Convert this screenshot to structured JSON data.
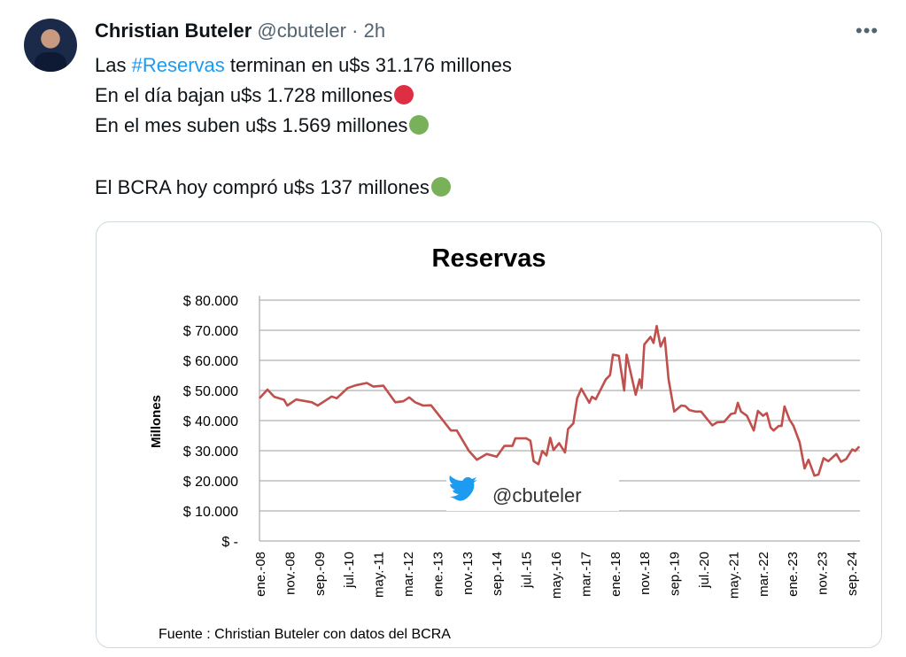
{
  "tweet": {
    "author_name": "Christian Buteler",
    "handle": "@cbuteler",
    "separator": "·",
    "time": "2h",
    "more_icon": "more-horizontal-icon",
    "line1_pre": "Las ",
    "hashtag": "#Reservas",
    "line1_post": " terminan en u$s 31.176 millones",
    "line2": "En el día bajan u$s 1.728 millones",
    "line3": "En el mes suben u$s 1.569 millones",
    "line4": "El BCRA hoy compró u$s 137 millones",
    "colors": {
      "red_dot": "#dd2e44",
      "green_dot": "#78b159",
      "accent": "#1d9bf0"
    }
  },
  "chart_data": {
    "type": "line",
    "title": "Reservas",
    "ylabel": "Millones",
    "xlabel": "",
    "source": "Fuente : Christian Buteler con datos del BCRA",
    "watermark": "@cbuteler",
    "ylim": [
      0,
      80000
    ],
    "xlim": [
      0,
      203
    ],
    "grid": true,
    "yticks": [
      0,
      10000,
      20000,
      30000,
      40000,
      50000,
      60000,
      70000,
      80000
    ],
    "ytick_labels": [
      "$ -",
      "$ 10.000",
      "$ 20.000",
      "$ 30.000",
      "$ 40.000",
      "$ 50.000",
      "$ 60.000",
      "$ 70.000",
      "$ 80.000"
    ],
    "xtick_months": [
      0,
      10,
      20,
      30,
      40,
      50,
      60,
      70,
      80,
      90,
      100,
      110,
      120,
      130,
      140,
      150,
      160,
      170,
      180,
      190,
      200
    ],
    "xtick_labels": [
      "ene.-08",
      "nov.-08",
      "sep.-09",
      "jul.-10",
      "may.-11",
      "mar.-12",
      "ene.-13",
      "nov.-13",
      "sep.-14",
      "jul.-15",
      "may.-16",
      "mar.-17",
      "ene.-18",
      "nov.-18",
      "sep.-19",
      "jul.-20",
      "may.-21",
      "mar.-22",
      "ene.-23",
      "nov.-23",
      "sep.-24"
    ],
    "line_color": "#c0504d",
    "series": [
      {
        "name": "Reservas",
        "points": [
          [
            0,
            47.4
          ],
          [
            2.7,
            50.3
          ],
          [
            5,
            47.9
          ],
          [
            8.3,
            46.9
          ],
          [
            9.4,
            45
          ],
          [
            12.4,
            47
          ],
          [
            17.7,
            46.1
          ],
          [
            19.7,
            45
          ],
          [
            24.4,
            48
          ],
          [
            26.1,
            47.4
          ],
          [
            29.8,
            50.8
          ],
          [
            32.5,
            51.7
          ],
          [
            36.3,
            52.5
          ],
          [
            38.5,
            51.3
          ],
          [
            41.9,
            51.6
          ],
          [
            45.9,
            46.1
          ],
          [
            48.6,
            46.4
          ],
          [
            50.6,
            47.7
          ],
          [
            52.6,
            46.1
          ],
          [
            55.3,
            45
          ],
          [
            58,
            45.1
          ],
          [
            62,
            40.1
          ],
          [
            64.7,
            36.7
          ],
          [
            66.7,
            36.7
          ],
          [
            70.8,
            29.9
          ],
          [
            73.5,
            27
          ],
          [
            76.8,
            28.9
          ],
          [
            80.2,
            28
          ],
          [
            82.8,
            31.6
          ],
          [
            85.5,
            31.6
          ],
          [
            86.5,
            34.1
          ],
          [
            90.2,
            34.1
          ],
          [
            91.6,
            33.3
          ],
          [
            92.7,
            26.5
          ],
          [
            94.3,
            25.5
          ],
          [
            95.6,
            29.9
          ],
          [
            97,
            28.4
          ],
          [
            98.3,
            34.3
          ],
          [
            99.4,
            30.2
          ],
          [
            101.3,
            32.5
          ],
          [
            103.3,
            29.4
          ],
          [
            104.3,
            37.2
          ],
          [
            106.1,
            39.1
          ],
          [
            107.4,
            47.4
          ],
          [
            108.8,
            50.6
          ],
          [
            111.5,
            45.9
          ],
          [
            112.4,
            47.9
          ],
          [
            113.7,
            47.1
          ],
          [
            117.1,
            53.7
          ],
          [
            118.5,
            55.1
          ],
          [
            119.5,
            61.9
          ],
          [
            121.5,
            61.5
          ],
          [
            123.3,
            50
          ],
          [
            124.1,
            61.9
          ],
          [
            127.2,
            48.6
          ],
          [
            128.5,
            53.7
          ],
          [
            129.2,
            50.8
          ],
          [
            130.1,
            65.3
          ],
          [
            132.2,
            67.8
          ],
          [
            133.2,
            65.8
          ],
          [
            134.3,
            71.4
          ],
          [
            135.6,
            64.6
          ],
          [
            137,
            67.5
          ],
          [
            138.3,
            53.7
          ],
          [
            140.2,
            43
          ],
          [
            142.6,
            45
          ],
          [
            144,
            44.8
          ],
          [
            145.3,
            43.5
          ],
          [
            147.3,
            43
          ],
          [
            149.3,
            43
          ],
          [
            153.1,
            38.4
          ],
          [
            154.7,
            39.4
          ],
          [
            157.1,
            39.6
          ],
          [
            159.4,
            42.2
          ],
          [
            160.8,
            42.5
          ],
          [
            161.7,
            45.9
          ],
          [
            162.8,
            43
          ],
          [
            164.8,
            41.6
          ],
          [
            167.1,
            36.7
          ],
          [
            168.5,
            43.2
          ],
          [
            170.2,
            41.6
          ],
          [
            171.5,
            42.5
          ],
          [
            172.8,
            37.7
          ],
          [
            173.8,
            36.7
          ],
          [
            175.5,
            38.2
          ],
          [
            176.5,
            38.2
          ],
          [
            177.5,
            44.7
          ],
          [
            179.2,
            40.3
          ],
          [
            180.5,
            38.3
          ],
          [
            182.6,
            32.8
          ],
          [
            184.3,
            24.1
          ],
          [
            185.6,
            27
          ],
          [
            187.6,
            21.7
          ],
          [
            189,
            22.1
          ],
          [
            190.7,
            27.5
          ],
          [
            192.3,
            26.5
          ],
          [
            195,
            28.9
          ],
          [
            196.6,
            26.3
          ],
          [
            198.4,
            27.3
          ],
          [
            200.4,
            30.4
          ],
          [
            201.4,
            29.9
          ],
          [
            202.8,
            31.4
          ]
        ],
        "value_unit": "thousand millones"
      }
    ]
  }
}
